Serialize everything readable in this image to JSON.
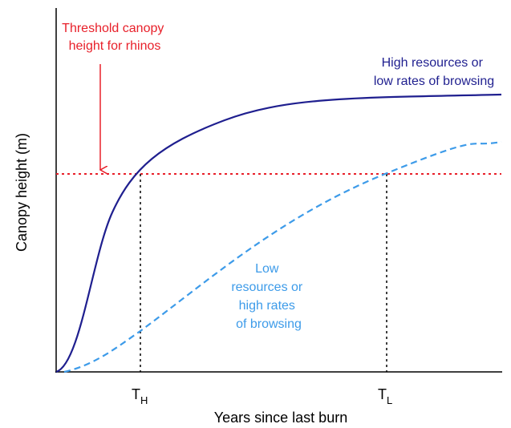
{
  "axes": {
    "y_label": "Canopy height (m)",
    "x_label": "Years since last burn"
  },
  "threshold": {
    "label": [
      "Threshold canopy",
      "height for rhinos"
    ]
  },
  "curves": [
    {
      "label": [
        "High resources or",
        "low rates of browsing"
      ]
    },
    {
      "label": [
        "Low",
        "resources or",
        "high rates",
        "of browsing"
      ]
    }
  ],
  "markers": [
    {
      "label": "T",
      "subscript": "H"
    },
    {
      "label": "T",
      "subscript": "L"
    }
  ]
}
